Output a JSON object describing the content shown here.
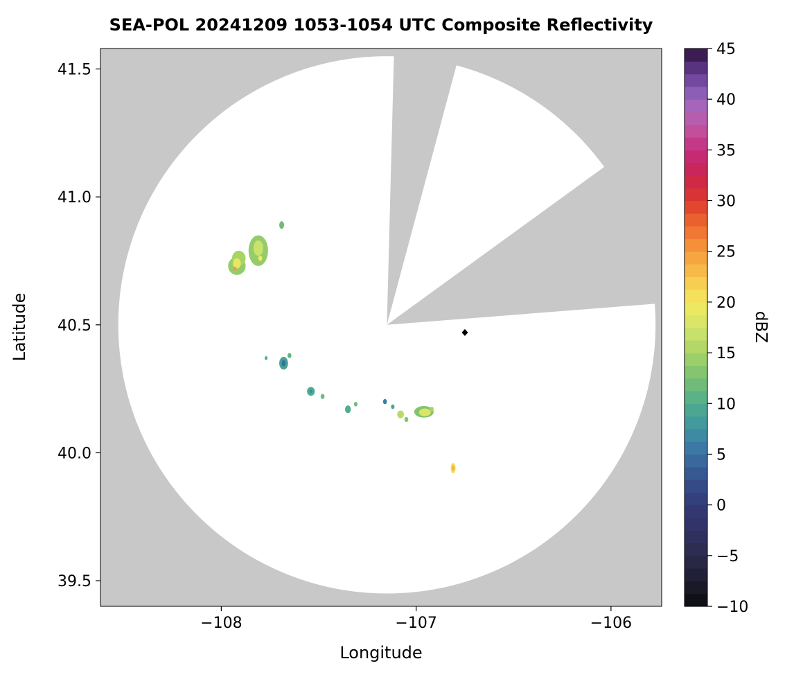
{
  "chart_data": {
    "type": "heatmap",
    "title": "SEA-POL 20241209 1053-1054 UTC Composite Reflectivity",
    "xlabel": "Longitude",
    "ylabel": "Latitude",
    "colorbar_label": "dBZ",
    "xlim": [
      -108.62,
      -105.74
    ],
    "ylim": [
      39.4,
      41.58
    ],
    "xticks": {
      "values": [
        -108,
        -107,
        -106
      ],
      "labels": [
        "−108",
        "−107",
        "−106"
      ]
    },
    "yticks": {
      "values": [
        39.5,
        40.0,
        40.5,
        41.0,
        41.5
      ],
      "labels": [
        "39.5",
        "40.0",
        "40.5",
        "41.0",
        "41.5"
      ]
    },
    "background_color": "#c8c8c8",
    "coverage": {
      "center_lon": -107.15,
      "center_lat": 40.5,
      "radius_deg_lat": 1.05,
      "fill": "#ffffff"
    },
    "blocked_sectors_deg": [
      {
        "start": 75.0,
        "end": 88.5
      },
      {
        "start": 4.5,
        "end": 36.0
      }
    ],
    "colorbar": {
      "min": -10,
      "max": 45,
      "step_per_band": 1.25,
      "tick_values": [
        -10,
        -5,
        0,
        5,
        10,
        15,
        20,
        25,
        30,
        35,
        40,
        45
      ],
      "tick_labels": [
        "−10",
        "−5",
        "0",
        "5",
        "10",
        "15",
        "20",
        "25",
        "30",
        "35",
        "40",
        "45"
      ]
    },
    "colormap_stops": [
      [
        -10,
        "#0b0b0e"
      ],
      [
        -7.5,
        "#1e1d31"
      ],
      [
        -5,
        "#2b2a4a"
      ],
      [
        -2.5,
        "#323264"
      ],
      [
        0,
        "#333a78"
      ],
      [
        2.5,
        "#34518c"
      ],
      [
        5,
        "#3a6fa5"
      ],
      [
        7.5,
        "#3f93a2"
      ],
      [
        10,
        "#4fae8d"
      ],
      [
        12.5,
        "#79c073"
      ],
      [
        15,
        "#a8d465"
      ],
      [
        17.5,
        "#d3e56c"
      ],
      [
        20,
        "#f4e95f"
      ],
      [
        22.5,
        "#f8c44d"
      ],
      [
        25,
        "#f49c3c"
      ],
      [
        27.5,
        "#ee6c30"
      ],
      [
        30,
        "#dd3a2c"
      ],
      [
        32.5,
        "#cb234f"
      ],
      [
        35,
        "#c42e7e"
      ],
      [
        37.5,
        "#c159a6"
      ],
      [
        40,
        "#9a69c0"
      ],
      [
        42.5,
        "#663e94"
      ],
      [
        45,
        "#2c123f"
      ]
    ],
    "echoes": [
      {
        "lon": -107.92,
        "lat": 40.73,
        "w": 0.09,
        "h": 0.07,
        "dbz": 14
      },
      {
        "lon": -107.91,
        "lat": 40.76,
        "w": 0.07,
        "h": 0.06,
        "dbz": 15
      },
      {
        "lon": -107.92,
        "lat": 40.74,
        "w": 0.04,
        "h": 0.04,
        "dbz": 19
      },
      {
        "lon": -107.93,
        "lat": 40.72,
        "w": 0.018,
        "h": 0.015,
        "dbz": 25
      },
      {
        "lon": -107.81,
        "lat": 40.79,
        "w": 0.1,
        "h": 0.12,
        "dbz": 14
      },
      {
        "lon": -107.81,
        "lat": 40.8,
        "w": 0.05,
        "h": 0.06,
        "dbz": 17
      },
      {
        "lon": -107.8,
        "lat": 40.76,
        "w": 0.02,
        "h": 0.02,
        "dbz": 20
      },
      {
        "lon": -107.69,
        "lat": 40.89,
        "w": 0.025,
        "h": 0.03,
        "dbz": 12
      },
      {
        "lon": -107.77,
        "lat": 40.37,
        "w": 0.015,
        "h": 0.015,
        "dbz": 10
      },
      {
        "lon": -107.68,
        "lat": 40.35,
        "w": 0.045,
        "h": 0.05,
        "dbz": 9
      },
      {
        "lon": -107.68,
        "lat": 40.35,
        "w": 0.02,
        "h": 0.025,
        "dbz": 5
      },
      {
        "lon": -107.65,
        "lat": 40.38,
        "w": 0.02,
        "h": 0.02,
        "dbz": 11
      },
      {
        "lon": -107.54,
        "lat": 40.24,
        "w": 0.04,
        "h": 0.035,
        "dbz": 10
      },
      {
        "lon": -107.54,
        "lat": 40.24,
        "w": 0.015,
        "h": 0.015,
        "dbz": 7
      },
      {
        "lon": -107.48,
        "lat": 40.22,
        "w": 0.02,
        "h": 0.02,
        "dbz": 12
      },
      {
        "lon": -107.35,
        "lat": 40.17,
        "w": 0.03,
        "h": 0.03,
        "dbz": 10
      },
      {
        "lon": -107.31,
        "lat": 40.19,
        "w": 0.018,
        "h": 0.018,
        "dbz": 12
      },
      {
        "lon": -107.16,
        "lat": 40.2,
        "w": 0.02,
        "h": 0.02,
        "dbz": 6
      },
      {
        "lon": -107.12,
        "lat": 40.18,
        "w": 0.018,
        "h": 0.018,
        "dbz": 9
      },
      {
        "lon": -107.08,
        "lat": 40.15,
        "w": 0.035,
        "h": 0.03,
        "dbz": 16
      },
      {
        "lon": -107.05,
        "lat": 40.13,
        "w": 0.02,
        "h": 0.02,
        "dbz": 13
      },
      {
        "lon": -106.96,
        "lat": 40.16,
        "w": 0.1,
        "h": 0.045,
        "dbz": 13
      },
      {
        "lon": -106.955,
        "lat": 40.158,
        "w": 0.06,
        "h": 0.03,
        "dbz": 18
      },
      {
        "lon": -106.92,
        "lat": 40.17,
        "w": 0.02,
        "h": 0.02,
        "dbz": 15
      },
      {
        "lon": -106.81,
        "lat": 39.94,
        "w": 0.025,
        "h": 0.04,
        "dbz": 21
      },
      {
        "lon": -106.81,
        "lat": 39.94,
        "w": 0.012,
        "h": 0.02,
        "dbz": 24
      }
    ],
    "marker": {
      "lon": -106.75,
      "lat": 40.47,
      "shape": "diamond",
      "color": "#000000"
    }
  }
}
